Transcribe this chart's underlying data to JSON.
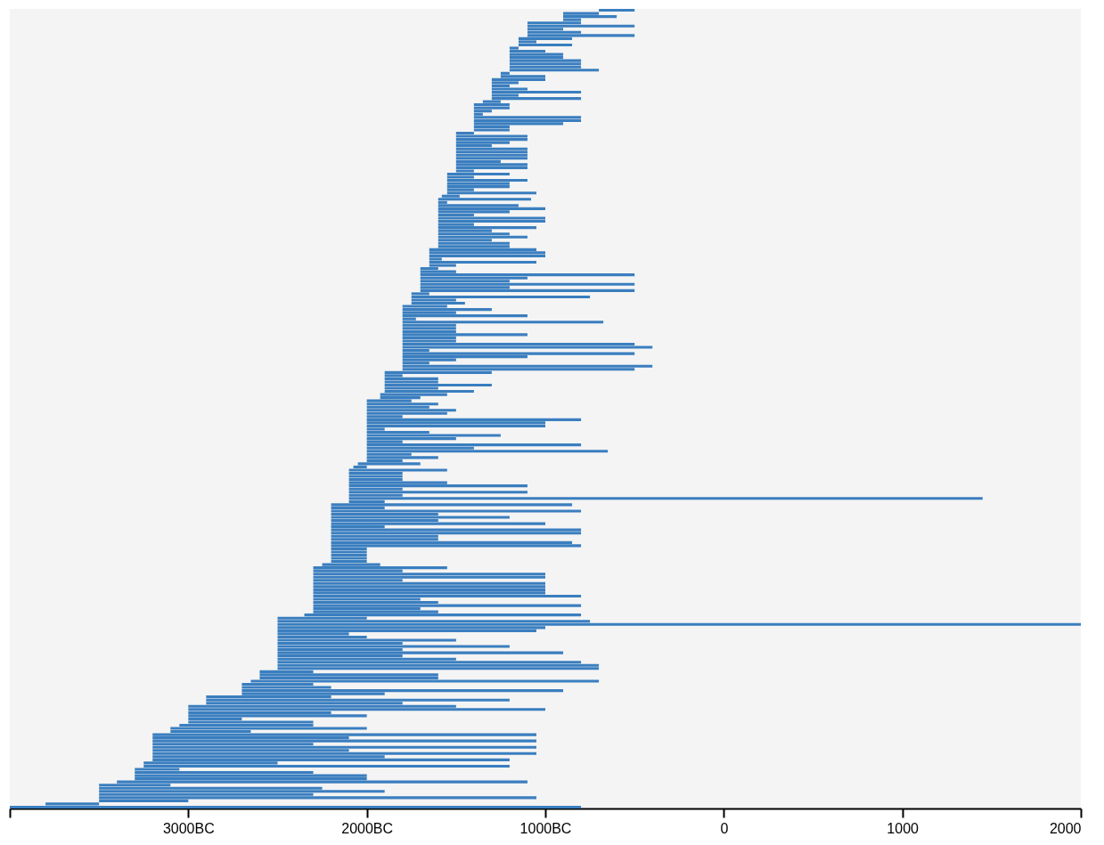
{
  "chart_data": {
    "type": "bar",
    "orientation": "horizontal",
    "tick_labels": "x",
    "color": "#3a7ebf",
    "xlim": [
      -4000,
      2000
    ],
    "xticks": [
      {
        "value": -4000,
        "label": null
      },
      {
        "value": -3000,
        "label": "3000BC"
      },
      {
        "value": -2000,
        "label": "2000BC"
      },
      {
        "value": -1000,
        "label": "1000BC"
      },
      0,
      1000,
      2000
    ],
    "categories": [
      null,
      null,
      null,
      null,
      null,
      null,
      null,
      null,
      null,
      null,
      null,
      null,
      null,
      null,
      null,
      null,
      null,
      null,
      null,
      null,
      null,
      null,
      null,
      null,
      null,
      null,
      null,
      null,
      null,
      null,
      null,
      null,
      null,
      null,
      null,
      null,
      null,
      null,
      null,
      null,
      null,
      null,
      null,
      null,
      null,
      null,
      null,
      null,
      null,
      null,
      null,
      null,
      null,
      null,
      null,
      null,
      null,
      null,
      null,
      null,
      null,
      null,
      null,
      null,
      null,
      null,
      null,
      null,
      null,
      null,
      null,
      null,
      null,
      null,
      null,
      null,
      null,
      null,
      null,
      null,
      null,
      null,
      null,
      null,
      null,
      null,
      null,
      null,
      null,
      null,
      null,
      null,
      null,
      null,
      null,
      null,
      null,
      null,
      null,
      null,
      null,
      null,
      null,
      null,
      null,
      null,
      null,
      null,
      null,
      null,
      null,
      null,
      null,
      null,
      null,
      null,
      null,
      null,
      null,
      null,
      null,
      null,
      null,
      null,
      null,
      null,
      null,
      null,
      null,
      null,
      null,
      null,
      null,
      null,
      null,
      null,
      null,
      null,
      null,
      null,
      null,
      null,
      null,
      null,
      null,
      null,
      null,
      null,
      null,
      null,
      null,
      null,
      null,
      null,
      null,
      null,
      null,
      null,
      null,
      null,
      null,
      null,
      null,
      null,
      null,
      null,
      null,
      null,
      null,
      null,
      null,
      null,
      null,
      null,
      null,
      null,
      null,
      null,
      null,
      null,
      null,
      null,
      null,
      null,
      null,
      null,
      null,
      null,
      null,
      null,
      null,
      null,
      null,
      null,
      null,
      null,
      null,
      null,
      null,
      null,
      null,
      null,
      null,
      null,
      null,
      null,
      null,
      null,
      null,
      null,
      null,
      null,
      null,
      null,
      null,
      null,
      null,
      null,
      null,
      null,
      null,
      null,
      null,
      null,
      null,
      null,
      null,
      null,
      null,
      null,
      null,
      null,
      null,
      null,
      null,
      null,
      null,
      null,
      null,
      null,
      null,
      null,
      null,
      null,
      null,
      null,
      null,
      null,
      null,
      null,
      null,
      null,
      null,
      null
    ],
    "base": [
      -700,
      -900,
      -900,
      -900,
      -1100,
      -1100,
      -1100,
      -1100,
      -1100,
      -1150,
      -1150,
      -1150,
      -1200,
      -1200,
      -1200,
      -1200,
      -1200,
      -1200,
      -1200,
      -1200,
      -1250,
      -1250,
      -1300,
      -1300,
      -1300,
      -1300,
      -1300,
      -1300,
      -1300,
      -1350,
      -1400,
      -1400,
      -1400,
      -1400,
      -1400,
      -1400,
      -1400,
      -1400,
      -1400,
      -1500,
      -1500,
      -1500,
      -1500,
      -1500,
      -1500,
      -1500,
      -1500,
      -1500,
      -1500,
      -1500,
      -1500,
      -1500,
      -1550,
      -1550,
      -1550,
      -1550,
      -1550,
      -1550,
      -1550,
      -1580,
      -1600,
      -1600,
      -1600,
      -1600,
      -1600,
      -1600,
      -1600,
      -1600,
      -1600,
      -1600,
      -1600,
      -1600,
      -1600,
      -1600,
      -1600,
      -1600,
      -1650,
      -1650,
      -1650,
      -1650,
      -1650,
      -1650,
      -1700,
      -1700,
      -1700,
      -1700,
      -1700,
      -1700,
      -1700,
      -1700,
      -1750,
      -1750,
      -1750,
      -1750,
      -1800,
      -1800,
      -1800,
      -1800,
      -1800,
      -1800,
      -1800,
      -1800,
      -1800,
      -1800,
      -1800,
      -1800,
      -1800,
      -1800,
      -1800,
      -1800,
      -1800,
      -1800,
      -1800,
      -1800,
      -1800,
      -1900,
      -1900,
      -1900,
      -1900,
      -1900,
      -1900,
      -1900,
      -1925,
      -1925,
      -2000,
      -2000,
      -2000,
      -2000,
      -2000,
      -2000,
      -2000,
      -2000,
      -2000,
      -2000,
      -2000,
      -2000,
      -2000,
      -2000,
      -2000,
      -2000,
      -2000,
      -2000,
      -2000,
      -2000,
      -2050,
      -2075,
      -2100,
      -2100,
      -2100,
      -2100,
      -2100,
      -2100,
      -2100,
      -2100,
      -2100,
      -2100,
      -2100,
      -2200,
      -2200,
      -2200,
      -2200,
      -2200,
      -2200,
      -2200,
      -2200,
      -2200,
      -2200,
      -2200,
      -2200,
      -2200,
      -2200,
      -2200,
      -2200,
      -2200,
      -2200,
      -2200,
      -2250,
      -2300,
      -2300,
      -2300,
      -2300,
      -2300,
      -2300,
      -2300,
      -2300,
      -2300,
      -2300,
      -2300,
      -2300,
      -2300,
      -2300,
      -2300,
      -2350,
      -2500,
      -2500,
      -2500,
      -2500,
      -2500,
      -2500,
      -2500,
      -2500,
      -2500,
      -2500,
      -2500,
      -2500,
      -2500,
      -2500,
      -2500,
      -2500,
      -2500,
      -2600,
      -2600,
      -2600,
      -2650,
      -2700,
      -2700,
      -2700,
      -2700,
      -2900,
      -2900,
      -2900,
      -3000,
      -3000,
      -3000,
      -3000,
      -3000,
      -3000,
      -3050,
      -3100,
      -3100,
      -3200,
      -3200,
      -3200,
      -3200,
      -3200,
      -3200,
      -3200,
      -3200,
      -3200,
      -3250,
      -3250,
      -3300,
      -3300,
      -3300,
      -3300,
      -3400,
      -3500,
      -3500,
      -3500,
      -3500,
      -3500,
      -3500,
      -3800,
      -4000
    ],
    "values": [
      200,
      200,
      300,
      100,
      300,
      600,
      200,
      300,
      600,
      300,
      100,
      300,
      50,
      200,
      300,
      300,
      400,
      400,
      400,
      500,
      50,
      250,
      300,
      150,
      100,
      200,
      500,
      150,
      500,
      100,
      200,
      200,
      100,
      50,
      600,
      600,
      500,
      200,
      200,
      100,
      400,
      400,
      300,
      200,
      400,
      400,
      400,
      400,
      250,
      400,
      400,
      100,
      350,
      150,
      450,
      350,
      350,
      150,
      500,
      100,
      520,
      50,
      450,
      600,
      400,
      200,
      600,
      600,
      200,
      550,
      300,
      400,
      500,
      300,
      400,
      400,
      600,
      650,
      650,
      70,
      600,
      150,
      100,
      200,
      1200,
      600,
      500,
      1200,
      500,
      1200,
      100,
      1000,
      250,
      300,
      250,
      500,
      300,
      700,
      75,
      1125,
      300,
      300,
      300,
      700,
      300,
      300,
      1300,
      1400,
      150,
      1300,
      700,
      300,
      150,
      1400,
      1300,
      600,
      100,
      300,
      300,
      600,
      300,
      500,
      375,
      225,
      250,
      400,
      350,
      500,
      450,
      200,
      1200,
      1000,
      1000,
      100,
      350,
      750,
      500,
      200,
      1200,
      600,
      1350,
      250,
      400,
      200,
      350,
      75,
      550,
      300,
      300,
      300,
      550,
      1000,
      300,
      1000,
      300,
      3550,
      200,
      1350,
      300,
      1400,
      600,
      1000,
      600,
      1200,
      300,
      1400,
      1400,
      600,
      600,
      1350,
      1400,
      200,
      200,
      200,
      200,
      200,
      325,
      750,
      500,
      1300,
      1300,
      500,
      1300,
      1300,
      1300,
      1300,
      1500,
      600,
      700,
      1500,
      600,
      700,
      1550,
      500,
      1750,
      4500,
      1500,
      1450,
      400,
      500,
      1000,
      700,
      1300,
      700,
      1600,
      700,
      1000,
      1700,
      1800,
      1800,
      300,
      1000,
      1000,
      1950,
      400,
      500,
      1800,
      800,
      700,
      1700,
      1100,
      1500,
      2000,
      800,
      1000,
      300,
      700,
      750,
      1100,
      450,
      2150,
      1100,
      2150,
      900,
      2150,
      1100,
      2150,
      1300,
      2000,
      750,
      2050,
      250,
      1000,
      1300,
      1300,
      2300,
      400,
      1250,
      1600,
      1200,
      2450,
      500,
      300,
      3200
    ]
  }
}
